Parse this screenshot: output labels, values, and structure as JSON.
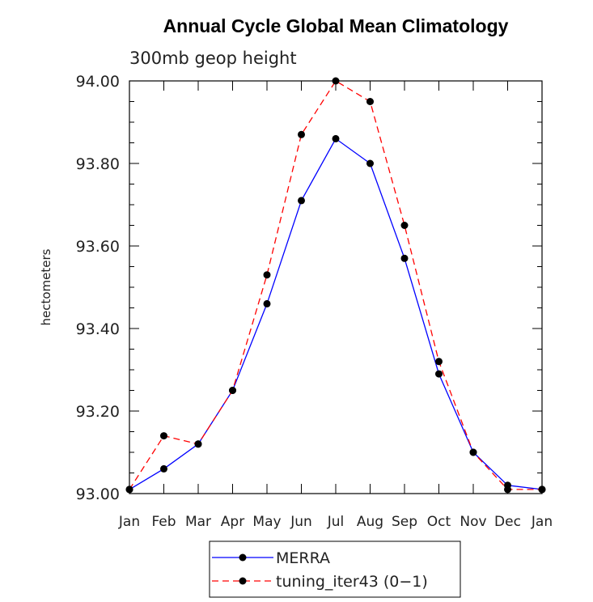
{
  "chart_data": {
    "type": "line",
    "title": "Annual Cycle Global Mean Climatology",
    "subtitle": "300mb geop height",
    "xlabel": "",
    "ylabel": "hectometers",
    "categories": [
      "Jan",
      "Feb",
      "Mar",
      "Apr",
      "May",
      "Jun",
      "Jul",
      "Aug",
      "Sep",
      "Oct",
      "Nov",
      "Dec",
      "Jan"
    ],
    "ylim": [
      93.0,
      94.0
    ],
    "yticks": [
      93.0,
      93.2,
      93.4,
      93.6,
      93.8,
      94.0
    ],
    "ytick_labels": [
      "93.00",
      "93.20",
      "93.40",
      "93.60",
      "93.80",
      "94.00"
    ],
    "series": [
      {
        "name": "MERRA",
        "color": "#0000ff",
        "dash": "solid",
        "values": [
          93.01,
          93.06,
          93.12,
          93.25,
          93.46,
          93.71,
          93.86,
          93.8,
          93.57,
          93.29,
          93.1,
          93.02,
          93.01
        ]
      },
      {
        "name": "tuning_iter43 (0-1)",
        "color": "#ff0000",
        "dash": "dashed",
        "values": [
          93.01,
          93.14,
          93.12,
          93.25,
          93.53,
          93.87,
          94.0,
          93.95,
          93.65,
          93.32,
          93.1,
          93.01,
          93.01
        ]
      }
    ],
    "legend": {
      "position": "bottom-center",
      "entries": [
        "MERRA",
        "tuning_iter43 (0−1)"
      ]
    }
  }
}
